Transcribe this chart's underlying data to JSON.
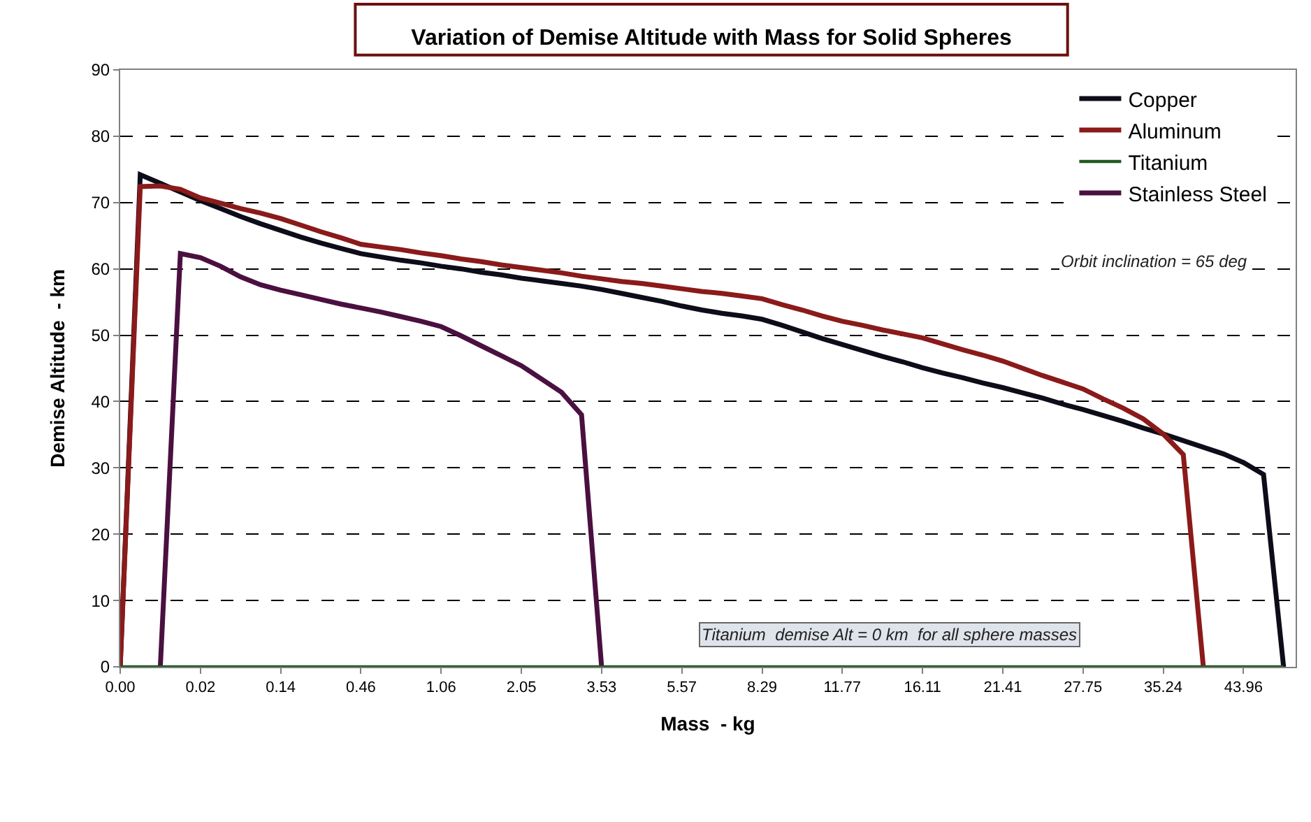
{
  "chart_data": {
    "type": "line",
    "title": "Variation of Demise Altitude with Mass for Solid Spheres",
    "xlabel": "Mass  - kg",
    "ylabel": "Demise Altitude  - km",
    "annotations": [
      "Orbit inclination = 65 deg",
      "Titanium  demise Alt = 0 km  for all sphere masses"
    ],
    "categories": [
      "0.00",
      null,
      null,
      null,
      "0.02",
      null,
      null,
      null,
      "0.14",
      null,
      null,
      null,
      "0.46",
      null,
      null,
      null,
      "1.06",
      null,
      null,
      null,
      "2.05",
      null,
      null,
      null,
      "3.53",
      null,
      null,
      null,
      "5.57",
      null,
      null,
      null,
      "8.29",
      null,
      null,
      null,
      "11.77",
      null,
      null,
      null,
      "16.11",
      null,
      null,
      null,
      "21.41",
      null,
      null,
      null,
      "27.75",
      null,
      null,
      null,
      "35.24",
      null,
      null,
      null,
      "43.96",
      null,
      null
    ],
    "series": [
      {
        "name": "Copper",
        "color": "#0d0d1a",
        "values": [
          0,
          74.2,
          72.9,
          71.6,
          70.3,
          69.1,
          67.9,
          66.8,
          65.8,
          64.8,
          63.9,
          63.1,
          62.3,
          61.8,
          61.3,
          60.9,
          60.4,
          60.0,
          59.5,
          59.1,
          58.6,
          58.2,
          57.8,
          57.4,
          56.9,
          56.3,
          55.7,
          55.1,
          54.4,
          53.8,
          53.3,
          52.9,
          52.4,
          51.5,
          50.5,
          49.5,
          48.6,
          47.7,
          46.8,
          46.0,
          45.1,
          44.3,
          43.6,
          42.8,
          42.1,
          41.3,
          40.5,
          39.6,
          38.8,
          37.9,
          37.0,
          36.0,
          35.1,
          34.1,
          33.1,
          32.1,
          30.8,
          29.0,
          0
        ]
      },
      {
        "name": "Aluminum",
        "color": "#8b1a1a",
        "values": [
          0,
          72.4,
          72.5,
          72.0,
          70.7,
          69.9,
          69.1,
          68.4,
          67.6,
          66.6,
          65.6,
          64.7,
          63.7,
          63.3,
          62.9,
          62.4,
          62.0,
          61.5,
          61.1,
          60.6,
          60.2,
          59.8,
          59.4,
          58.9,
          58.5,
          58.1,
          57.8,
          57.4,
          57.0,
          56.6,
          56.3,
          55.9,
          55.5,
          54.6,
          53.8,
          52.9,
          52.1,
          51.5,
          50.8,
          50.2,
          49.6,
          48.7,
          47.8,
          47.0,
          46.1,
          45.0,
          43.9,
          42.9,
          41.9,
          40.4,
          39.0,
          37.4,
          35.1,
          32.0,
          0,
          null,
          null,
          null,
          null
        ]
      },
      {
        "name": "Titanium",
        "color": "#1e5a1e",
        "values": [
          0,
          0,
          0,
          0,
          0,
          0,
          0,
          0,
          0,
          0,
          0,
          0,
          0,
          0,
          0,
          0,
          0,
          0,
          0,
          0,
          0,
          0,
          0,
          0,
          0,
          0,
          0,
          0,
          0,
          0,
          0,
          0,
          0,
          0,
          0,
          0,
          0,
          0,
          0,
          0,
          0,
          0,
          0,
          0,
          0,
          0,
          0,
          0,
          0,
          0,
          0,
          0,
          0,
          0,
          0,
          0,
          0,
          0,
          0
        ]
      },
      {
        "name": "Stainless Steel",
        "color": "#4a1040",
        "values": [
          null,
          null,
          0,
          62.3,
          61.7,
          60.4,
          58.8,
          57.6,
          56.8,
          56.1,
          55.4,
          54.7,
          54.1,
          53.5,
          52.8,
          52.1,
          51.3,
          49.9,
          48.4,
          46.9,
          45.4,
          43.4,
          41.4,
          38.0,
          0,
          null,
          null,
          null,
          null,
          null,
          null,
          null,
          null,
          null,
          null,
          null,
          null,
          null,
          null,
          null,
          null,
          null,
          null,
          null,
          null,
          null,
          null,
          null,
          null,
          null,
          null,
          null,
          null,
          null,
          null,
          null,
          null,
          null,
          null
        ]
      }
    ],
    "ylim": [
      0,
      90
    ],
    "yticks": [
      0,
      10,
      20,
      30,
      40,
      50,
      60,
      70,
      80,
      90
    ],
    "grid": "y",
    "legend": "top right",
    "marker": "none",
    "line_style": "solid"
  }
}
